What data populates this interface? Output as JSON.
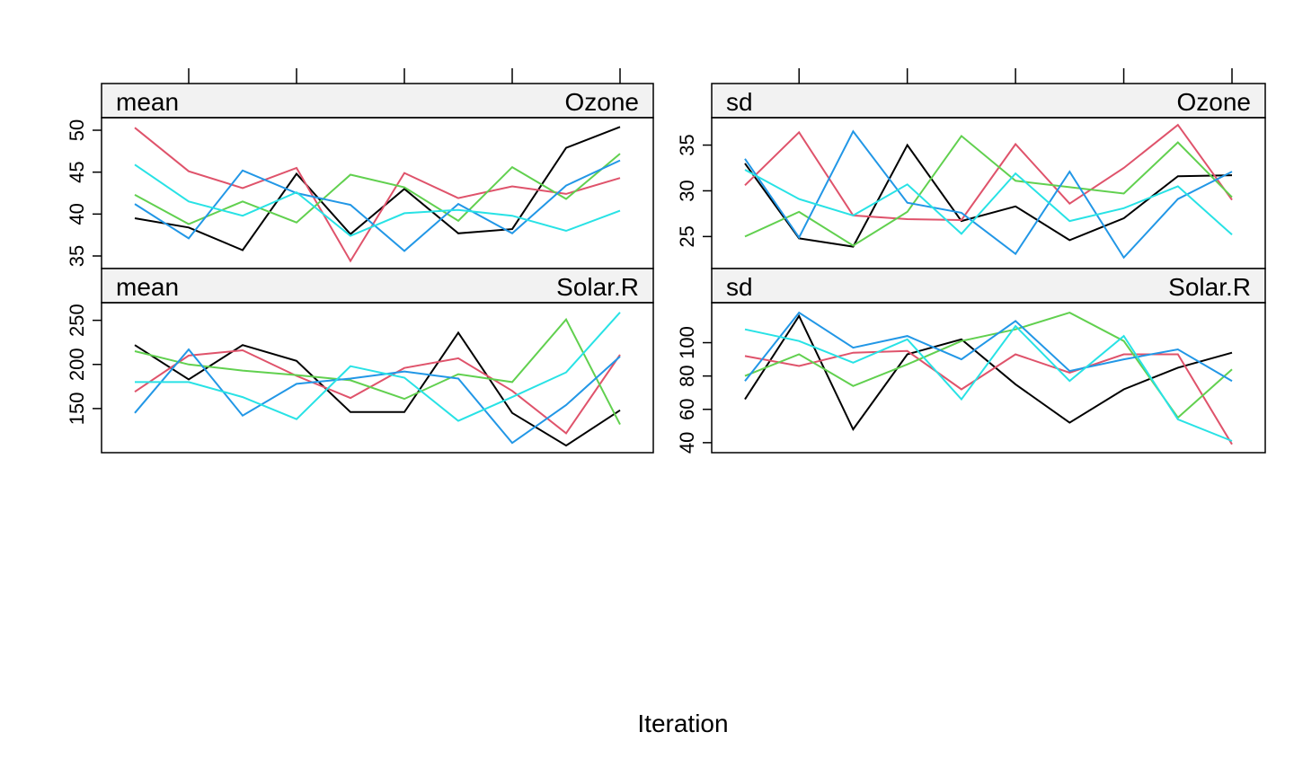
{
  "chart_data": [
    {
      "type": "line",
      "stat": "mean",
      "variable": "Ozone",
      "x": [
        1,
        2,
        3,
        4,
        5,
        6,
        7,
        8,
        9,
        10
      ],
      "ylim": [
        33.5,
        51.5
      ],
      "yticks": [
        35,
        40,
        45,
        50
      ],
      "ytick_labels": [
        "35",
        "40",
        "45",
        "50"
      ],
      "series": [
        {
          "color": "#000000",
          "values": [
            39.5,
            38.4,
            35.7,
            44.8,
            37.6,
            43.0,
            37.7,
            38.2,
            47.9,
            50.4
          ]
        },
        {
          "color": "#DF536B",
          "values": [
            50.3,
            45.1,
            43.1,
            45.5,
            34.4,
            44.9,
            41.9,
            43.3,
            42.4,
            44.3
          ]
        },
        {
          "color": "#61D04F",
          "values": [
            42.3,
            38.8,
            41.5,
            39.0,
            44.7,
            43.2,
            39.2,
            45.6,
            41.8,
            47.2
          ]
        },
        {
          "color": "#2297E6",
          "values": [
            41.2,
            37.1,
            45.2,
            42.5,
            41.1,
            35.6,
            41.2,
            37.7,
            43.4,
            46.4
          ]
        },
        {
          "color": "#28E2E5",
          "values": [
            45.9,
            41.5,
            39.8,
            42.6,
            37.4,
            40.1,
            40.5,
            39.8,
            38.0,
            40.4
          ]
        }
      ]
    },
    {
      "type": "line",
      "stat": "sd",
      "variable": "Ozone",
      "x": [
        1,
        2,
        3,
        4,
        5,
        6,
        7,
        8,
        9,
        10
      ],
      "ylim": [
        21.5,
        38.0
      ],
      "yticks": [
        25,
        30,
        35
      ],
      "ytick_labels": [
        "25",
        "30",
        "35"
      ],
      "series": [
        {
          "color": "#000000",
          "values": [
            33.0,
            24.8,
            23.9,
            35.0,
            26.7,
            28.3,
            24.6,
            27.0,
            31.6,
            31.7
          ]
        },
        {
          "color": "#DF536B",
          "values": [
            30.6,
            36.4,
            27.3,
            26.9,
            26.8,
            35.1,
            28.6,
            32.5,
            37.2,
            29.0
          ]
        },
        {
          "color": "#61D04F",
          "values": [
            25.0,
            27.7,
            24.0,
            27.7,
            36.0,
            31.1,
            30.4,
            29.7,
            35.3,
            29.3
          ]
        },
        {
          "color": "#2297E6",
          "values": [
            33.5,
            24.9,
            36.5,
            28.7,
            27.6,
            23.1,
            32.1,
            22.7,
            29.1,
            32.1
          ]
        },
        {
          "color": "#28E2E5",
          "values": [
            32.3,
            29.1,
            27.3,
            30.7,
            25.3,
            31.9,
            26.7,
            28.1,
            30.5,
            25.2
          ]
        }
      ]
    },
    {
      "type": "line",
      "stat": "mean",
      "variable": "Solar.R",
      "x": [
        1,
        2,
        3,
        4,
        5,
        6,
        7,
        8,
        9,
        10
      ],
      "ylim": [
        100,
        270
      ],
      "yticks": [
        150,
        200,
        250
      ],
      "ytick_labels": [
        "150",
        "200",
        "250"
      ],
      "series": [
        {
          "color": "#000000",
          "values": [
            222,
            183,
            222,
            204,
            146,
            146,
            236,
            145,
            108,
            148
          ]
        },
        {
          "color": "#DF536B",
          "values": [
            169,
            210,
            216,
            187,
            162,
            196,
            207,
            170,
            122,
            211
          ]
        },
        {
          "color": "#61D04F",
          "values": [
            215,
            200,
            193,
            188,
            182,
            161,
            189,
            180,
            251,
            132
          ]
        },
        {
          "color": "#2297E6",
          "values": [
            145,
            217,
            142,
            178,
            184,
            192,
            184,
            111,
            154,
            209
          ]
        },
        {
          "color": "#28E2E5",
          "values": [
            180,
            180,
            163,
            138,
            198,
            185,
            136,
            163,
            191,
            259
          ]
        }
      ]
    },
    {
      "type": "line",
      "stat": "sd",
      "variable": "Solar.R",
      "x": [
        1,
        2,
        3,
        4,
        5,
        6,
        7,
        8,
        9,
        10
      ],
      "ylim": [
        34,
        124
      ],
      "yticks": [
        40,
        60,
        80,
        100
      ],
      "ytick_labels": [
        "40",
        "60",
        "80",
        "100"
      ],
      "series": [
        {
          "color": "#000000",
          "values": [
            66,
            116,
            48,
            93,
            102,
            75,
            52,
            72,
            85,
            94
          ]
        },
        {
          "color": "#DF536B",
          "values": [
            92,
            86,
            94,
            95,
            72,
            93,
            82,
            93,
            93,
            39
          ]
        },
        {
          "color": "#61D04F",
          "values": [
            80,
            93,
            74,
            87,
            101,
            108,
            118,
            101,
            55,
            84
          ]
        },
        {
          "color": "#2297E6",
          "values": [
            77,
            118,
            97,
            104,
            90,
            113,
            83,
            90,
            96,
            77
          ]
        },
        {
          "color": "#28E2E5",
          "values": [
            108,
            101,
            88,
            102,
            66,
            110,
            77,
            104,
            54,
            41
          ]
        }
      ]
    }
  ],
  "xlabel": "Iteration"
}
